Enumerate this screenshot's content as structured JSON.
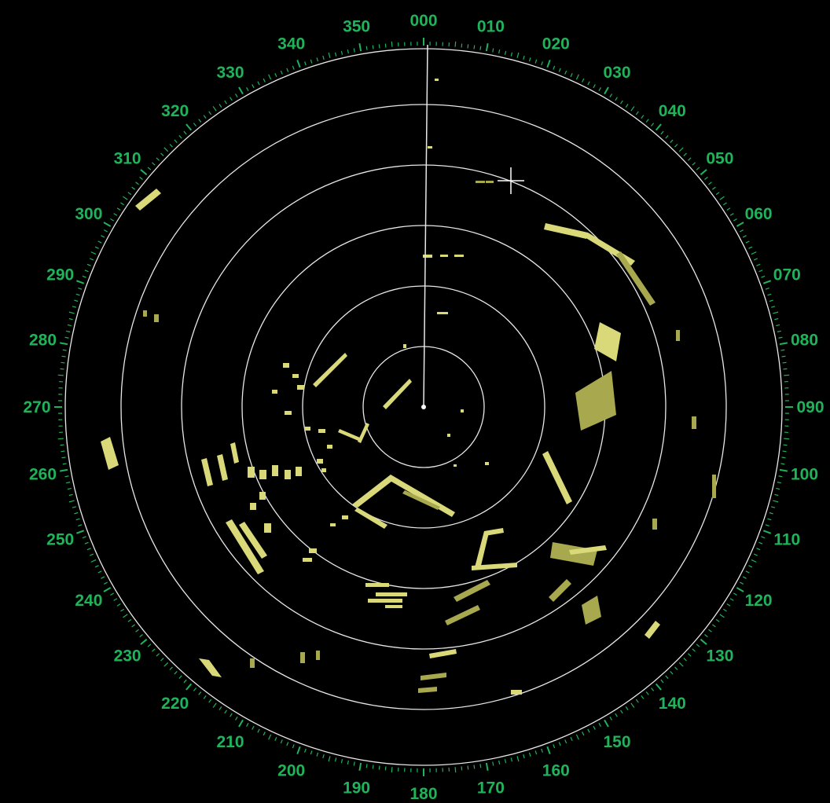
{
  "display": {
    "bearing_labels": [
      "000",
      "010",
      "020",
      "030",
      "040",
      "050",
      "060",
      "070",
      "080",
      "090",
      "100",
      "110",
      "120",
      "130",
      "140",
      "150",
      "160",
      "170",
      "180",
      "190",
      "200",
      "210",
      "220",
      "230",
      "240",
      "250",
      "260",
      "270",
      "280",
      "290",
      "300",
      "310",
      "320",
      "330",
      "340",
      "350"
    ],
    "range_rings": 5,
    "heading_line_bearing": 0,
    "colors": {
      "background": "#000000",
      "scale": "#1fb35a",
      "rings": "#e8e8e8",
      "echoes": "#d9d97a"
    },
    "icons": {
      "cursor": "crosshair-icon",
      "own_ship": "own-ship-dot-icon"
    }
  }
}
